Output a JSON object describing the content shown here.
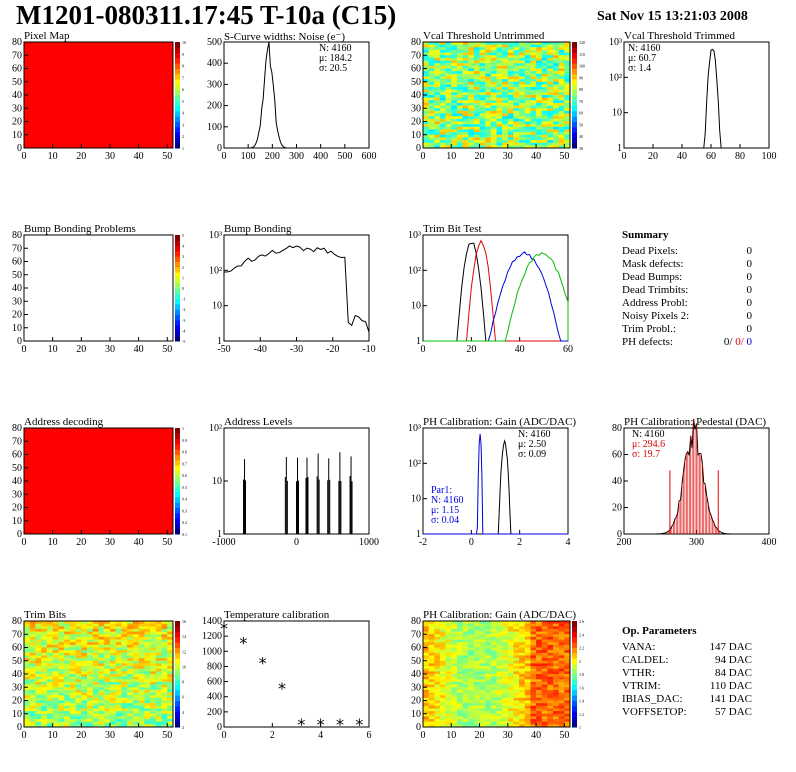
{
  "header": {
    "title": "M1201-080311.17:45 T-10a (C15)",
    "date": "Sat Nov 15 13:21:03 2008"
  },
  "colors": {
    "black": "#000000",
    "red": "#e00000",
    "blue": "#0000e0",
    "green": "#00c000",
    "map_red": "#ff0000"
  },
  "chart_data": [
    {
      "id": "pixel-map",
      "type": "heatmap",
      "title": "Pixel Map",
      "xticks": [
        "0",
        "10",
        "20",
        "30",
        "40",
        "50"
      ],
      "yticks": [
        "0",
        "10",
        "20",
        "30",
        "40",
        "50",
        "60",
        "70",
        "80"
      ],
      "zticks": [
        "1",
        "2",
        "3",
        "4",
        "5",
        "6",
        "7",
        "8",
        "9",
        "10"
      ],
      "fill": "uniform-red"
    },
    {
      "id": "scurve",
      "type": "line",
      "title": "S-Curve widths: Noise (e⁻)",
      "xticks": [
        "0",
        "100",
        "200",
        "300",
        "400",
        "500",
        "600"
      ],
      "yticks": [
        "0",
        "100",
        "200",
        "300",
        "400",
        "500"
      ],
      "stats": [
        "N: 4160",
        "μ: 184.2",
        "σ: 20.5"
      ],
      "xlim": [
        0,
        600
      ],
      "ylim": [
        0,
        520
      ],
      "peak_x": 184,
      "peak_y": 490,
      "sigma": 20.5
    },
    {
      "id": "vcal-untrimmed",
      "type": "heatmap",
      "title": "Vcal Threshold Untrimmed",
      "xticks": [
        "0",
        "10",
        "20",
        "30",
        "40",
        "50"
      ],
      "yticks": [
        "0",
        "10",
        "20",
        "30",
        "40",
        "50",
        "60",
        "70",
        "80"
      ],
      "zticks": [
        "30",
        "40",
        "50",
        "60",
        "70",
        "80",
        "90",
        "100",
        "110",
        "120"
      ]
    },
    {
      "id": "vcal-trimmed",
      "type": "line",
      "title": "Vcal Threshold Trimmed",
      "xticks": [
        "0",
        "20",
        "40",
        "60",
        "80",
        "100"
      ],
      "yticks": [
        "1",
        "10",
        "10²",
        "10³"
      ],
      "stats": [
        "N: 4160",
        "μ: 60.7",
        "σ: 1.4"
      ],
      "xlim": [
        0,
        100
      ],
      "peak_x": 61,
      "sigma": 1.4
    },
    {
      "id": "bump-map",
      "type": "heatmap",
      "title": "Bump Bonding Problems",
      "xticks": [
        "0",
        "10",
        "20",
        "30",
        "40",
        "50"
      ],
      "yticks": [
        "0",
        "10",
        "20",
        "30",
        "40",
        "50",
        "60",
        "70",
        "80"
      ],
      "zticks": [
        "-5",
        "-4",
        "-3",
        "-2",
        "-1",
        "0",
        "1",
        "2",
        "3",
        "4",
        "5"
      ],
      "fill": "empty"
    },
    {
      "id": "bump-bonding",
      "type": "line",
      "title": "Bump Bonding",
      "xticks": [
        "-50",
        "-40",
        "-30",
        "-20",
        "-10"
      ],
      "yticks": [
        "1",
        "10",
        "10²",
        "10³"
      ],
      "xlim": [
        -50,
        -8
      ]
    },
    {
      "id": "trim-bit",
      "type": "line",
      "title": "Trim Bit Test",
      "xticks": [
        "0",
        "20",
        "40",
        "60"
      ],
      "yticks": [
        "1",
        "10",
        "10²",
        "10³"
      ],
      "series": [
        {
          "color": "black",
          "mean": 20
        },
        {
          "color": "red",
          "mean": 24
        },
        {
          "color": "blue",
          "mean": 42
        },
        {
          "color": "green",
          "mean": 49
        }
      ]
    },
    {
      "id": "address-decoding",
      "type": "heatmap",
      "title": "Address decoding",
      "xticks": [
        "0",
        "10",
        "20",
        "30",
        "40",
        "50"
      ],
      "yticks": [
        "0",
        "10",
        "20",
        "30",
        "40",
        "50",
        "60",
        "70",
        "80"
      ],
      "zticks": [
        "0.1",
        "0.2",
        "0.3",
        "0.4",
        "0.5",
        "0.6",
        "0.7",
        "0.8",
        "0.9",
        "1"
      ],
      "fill": "uniform-red"
    },
    {
      "id": "address-levels",
      "type": "bar",
      "title": "Address Levels",
      "xticks": [
        "-1000",
        "0",
        "1000"
      ],
      "yticks": [
        "1",
        "10",
        "10²"
      ]
    },
    {
      "id": "ph-gain",
      "type": "line",
      "title": "PH Calibration: Gain (ADC/DAC)",
      "xticks": [
        "-2",
        "0",
        "2",
        "4"
      ],
      "yticks": [
        "1",
        "10",
        "10²",
        "10³"
      ],
      "stats": [
        "N: 4160",
        "μ: 2.50",
        "σ: 0.09"
      ],
      "stats2": [
        "Par1:",
        "N: 4160",
        "μ: 1.15",
        "σ: 0.04"
      ]
    },
    {
      "id": "ph-pedestal",
      "type": "line",
      "title": "PH Calibration: Pedestal (DAC)",
      "xticks": [
        "200",
        "300",
        "400"
      ],
      "yticks": [
        "0",
        "20",
        "40",
        "60",
        "80"
      ],
      "stats": [
        "N: 4160",
        "μ: 294.6",
        "σ: 19.7"
      ]
    },
    {
      "id": "trim-bits",
      "type": "heatmap",
      "title": "Trim Bits",
      "xticks": [
        "0",
        "10",
        "20",
        "30",
        "40",
        "50"
      ],
      "yticks": [
        "0",
        "10",
        "20",
        "30",
        "40",
        "50",
        "60",
        "70",
        "80"
      ],
      "zticks": [
        "2",
        "4",
        "6",
        "8",
        "10",
        "12",
        "14",
        "16"
      ]
    },
    {
      "id": "temperature",
      "type": "scatter",
      "title": "Temperature calibration",
      "xticks": [
        "0",
        "2",
        "4",
        "6"
      ],
      "yticks": [
        "0",
        "200",
        "400",
        "600",
        "800",
        "1000",
        "1200",
        "1400"
      ],
      "x": [
        0,
        1,
        2,
        3,
        4,
        5,
        6,
        7
      ],
      "y": [
        1390,
        1180,
        900,
        540,
        30,
        30,
        30,
        30
      ],
      "xlim": [
        0,
        7.5
      ],
      "ylim": [
        0,
        1500
      ]
    },
    {
      "id": "ph-gain-map",
      "type": "heatmap",
      "title": "PH Calibration: Gain (ADC/DAC)",
      "xticks": [
        "0",
        "10",
        "20",
        "30",
        "40",
        "50"
      ],
      "yticks": [
        "0",
        "10",
        "20",
        "30",
        "40",
        "50",
        "60",
        "70",
        "80"
      ],
      "zticks": [
        "1",
        "1.2",
        "1.4",
        "1.6",
        "1.8",
        "2",
        "2.2",
        "2.4",
        "2.6"
      ]
    }
  ],
  "summary": {
    "title": "Summary",
    "rows": [
      {
        "label": "Dead Pixels:",
        "value": "0"
      },
      {
        "label": "Mask defects:",
        "value": "0"
      },
      {
        "label": "Dead Bumps:",
        "value": "0"
      },
      {
        "label": "Dead Trimbits:",
        "value": "0"
      },
      {
        "label": "Address Probl:",
        "value": "0"
      },
      {
        "label": "Noisy Pixels 2:",
        "value": "0"
      },
      {
        "label": "Trim Probl.:",
        "value": "0"
      }
    ],
    "ph": {
      "label": "PH defects:",
      "v1": "0/",
      "v2": "0/",
      "v3": "0"
    }
  },
  "params": {
    "title": "Op. Parameters",
    "rows": [
      {
        "label": "VANA:",
        "value": "147 DAC"
      },
      {
        "label": "CALDEL:",
        "value": "94 DAC"
      },
      {
        "label": "VTHR:",
        "value": "84 DAC"
      },
      {
        "label": "VTRIM:",
        "value": "110 DAC"
      },
      {
        "label": "IBIAS_DAC:",
        "value": "141 DAC"
      },
      {
        "label": "VOFFSETOP:",
        "value": "57 DAC"
      }
    ]
  }
}
